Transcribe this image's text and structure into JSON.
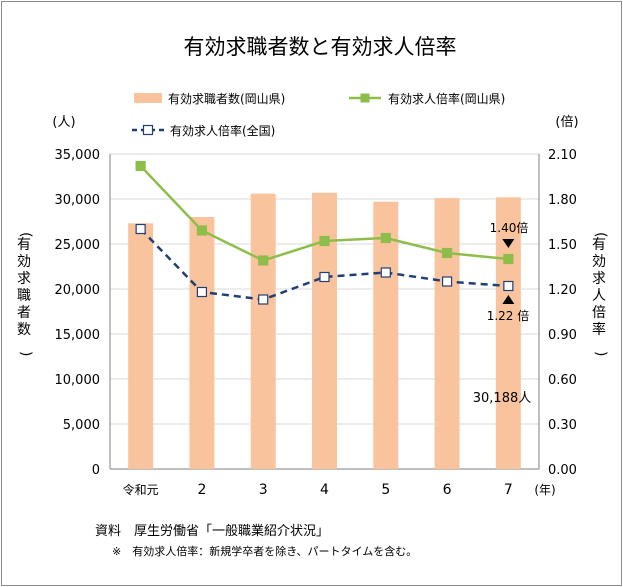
{
  "chart_data": {
    "type": "bar+line",
    "title": "有効求職者数と有効求人倍率",
    "categories": [
      "令和元",
      "2",
      "3",
      "4",
      "5",
      "6",
      "7"
    ],
    "x_unit": "(年)",
    "y_left": {
      "unit": "(人)",
      "label": "(有効求職者数)",
      "min": 0,
      "max": 35000,
      "step": 5000,
      "ticks": [
        "0",
        "5,000",
        "10,000",
        "15,000",
        "20,000",
        "25,000",
        "30,000",
        "35,000"
      ]
    },
    "y_right": {
      "unit": "(倍)",
      "label": "(有効求人倍率)",
      "min": 0,
      "max": 2.1,
      "step": 0.3,
      "ticks": [
        "0.00",
        "0.30",
        "0.60",
        "0.90",
        "1.20",
        "1.50",
        "1.80",
        "2.10"
      ]
    },
    "series": [
      {
        "name": "有効求職者数(岡山県)",
        "kind": "bar",
        "axis": "left",
        "color": "#f9c49d",
        "values": [
          27300,
          28000,
          30600,
          30700,
          29700,
          30100,
          30188
        ]
      },
      {
        "name": "有効求人倍率(岡山県)",
        "kind": "line",
        "axis": "right",
        "color": "#8fbd4c",
        "values": [
          2.02,
          1.59,
          1.39,
          1.52,
          1.54,
          1.44,
          1.4
        ]
      },
      {
        "name": "有効求人倍率(全国)",
        "kind": "line-dashed",
        "axis": "right",
        "color": "#1f3f75",
        "values": [
          1.6,
          1.18,
          1.13,
          1.28,
          1.31,
          1.25,
          1.22
        ]
      }
    ],
    "annotations": {
      "okayama_ratio": "1.40倍",
      "national_ratio": "1.22 倍",
      "seekers": "30,188人"
    },
    "grid": "horizontal"
  },
  "notes": {
    "source": "資料　厚生労働省「一般職業紹介状況」",
    "footnote": "※　有効求人倍率：新規学卒者を除き、パートタイムを含む。"
  }
}
